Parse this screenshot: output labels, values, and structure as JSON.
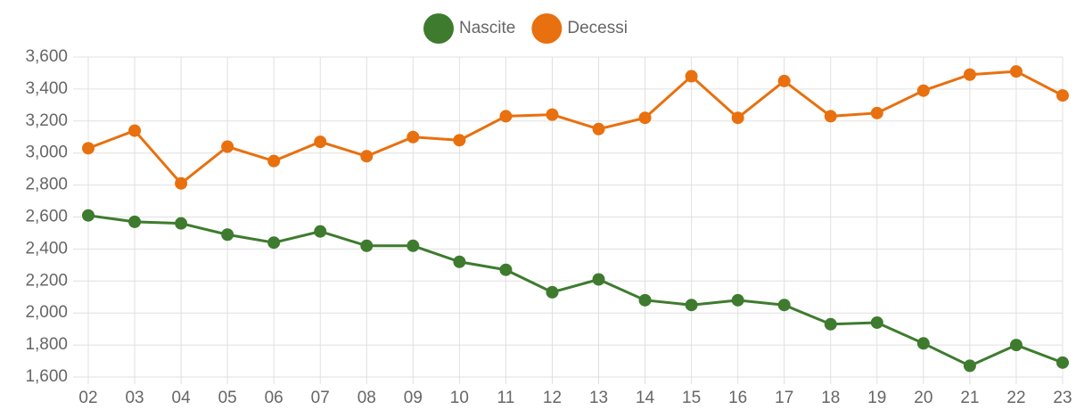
{
  "chart_data": {
    "type": "line",
    "categories": [
      "02",
      "03",
      "04",
      "05",
      "06",
      "07",
      "08",
      "09",
      "10",
      "11",
      "12",
      "13",
      "14",
      "15",
      "16",
      "17",
      "18",
      "19",
      "20",
      "21",
      "22",
      "23"
    ],
    "series": [
      {
        "name": "Nascite",
        "color": "#3e7b2e",
        "values": [
          2610,
          2570,
          2560,
          2490,
          2440,
          2510,
          2420,
          2420,
          2320,
          2270,
          2130,
          2210,
          2080,
          2050,
          2080,
          2050,
          1930,
          1940,
          1810,
          1670,
          1800,
          1690
        ]
      },
      {
        "name": "Decessi",
        "color": "#e8700e",
        "values": [
          3030,
          3140,
          2810,
          3040,
          2950,
          3070,
          2980,
          3100,
          3080,
          3230,
          3240,
          3150,
          3220,
          3480,
          3220,
          3450,
          3230,
          3250,
          3390,
          3490,
          3510,
          3360
        ]
      }
    ],
    "ylim": [
      1600,
      3600
    ],
    "yticks": [
      {
        "value": 1600,
        "label": "1,600"
      },
      {
        "value": 1800,
        "label": "1,800"
      },
      {
        "value": 2000,
        "label": "2,000"
      },
      {
        "value": 2200,
        "label": "2,200"
      },
      {
        "value": 2400,
        "label": "2,400"
      },
      {
        "value": 2600,
        "label": "2,600"
      },
      {
        "value": 2800,
        "label": "2,800"
      },
      {
        "value": 3000,
        "label": "3,000"
      },
      {
        "value": 3200,
        "label": "3,200"
      },
      {
        "value": 3400,
        "label": "3,400"
      },
      {
        "value": 3600,
        "label": "3,600"
      }
    ],
    "grid": true,
    "legend": "top"
  }
}
